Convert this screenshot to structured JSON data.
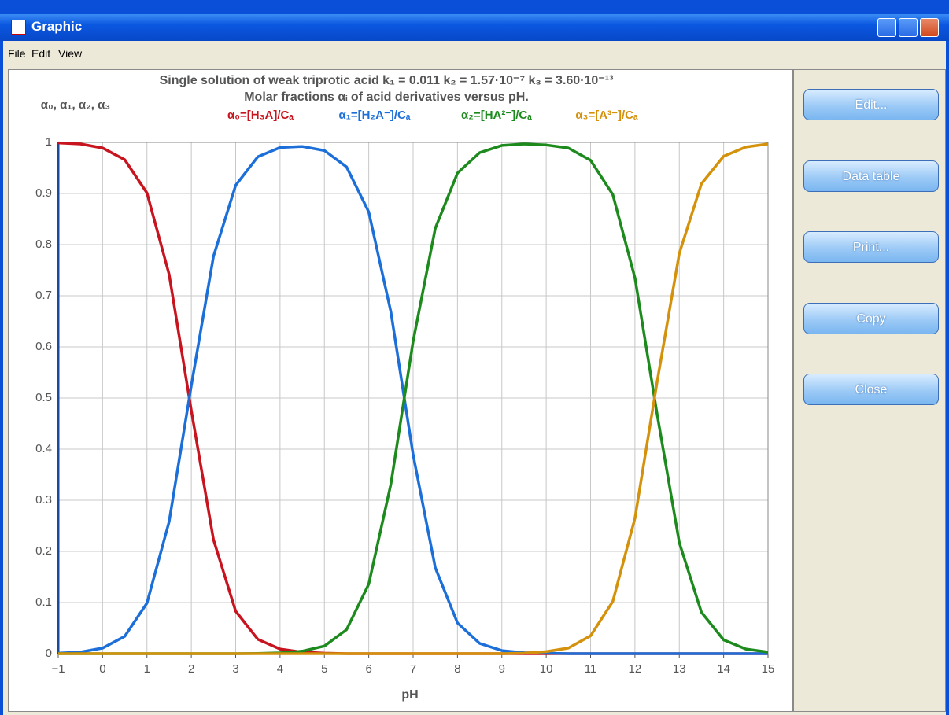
{
  "window": {
    "title": "Graphic"
  },
  "menu": [
    "File",
    "Edit",
    "View"
  ],
  "buttons": [
    "Edit...",
    "Data table",
    "Print...",
    "Copy",
    "Close"
  ],
  "chart_data": {
    "type": "line",
    "title": "Single solution of weak triprotic acid  k₁ = 0.011   k₂ = 1.57·10⁻⁷   k₃ = 3.60·10⁻¹³",
    "subtitle": "Molar fractions αᵢ of acid derivatives versus pH.",
    "y_label": "α₀, α₁, α₂, α₃",
    "x_label": "pH",
    "x": [
      -1,
      -0.5,
      0,
      0.5,
      1,
      1.5,
      2,
      2.5,
      3,
      3.5,
      4,
      4.5,
      5,
      5.5,
      6,
      6.5,
      7,
      7.5,
      8,
      8.5,
      9,
      9.5,
      10,
      10.5,
      11,
      11.5,
      12,
      12.5,
      13,
      13.5,
      14,
      14.5,
      15
    ],
    "series": [
      {
        "name": "α₀=[H₃A]/Cₐ",
        "color": "#c8141e",
        "values": [
          0.999,
          0.997,
          0.989,
          0.966,
          0.901,
          0.742,
          0.476,
          0.223,
          0.083,
          0.028,
          0.009,
          0.003,
          0.001,
          0,
          0,
          0,
          0,
          0,
          0,
          0,
          0,
          0,
          0,
          0,
          0,
          0,
          0,
          0,
          0,
          0,
          0,
          0,
          0
        ]
      },
      {
        "name": "α₁=[H₂A⁻]/Cₐ",
        "color": "#1c6fd8",
        "values": [
          0.001,
          0.003,
          0.011,
          0.034,
          0.099,
          0.258,
          0.524,
          0.777,
          0.916,
          0.972,
          0.99,
          0.992,
          0.984,
          0.952,
          0.864,
          0.668,
          0.389,
          0.168,
          0.06,
          0.02,
          0.006,
          0.002,
          0.001,
          0,
          0,
          0,
          0,
          0,
          0,
          0,
          0,
          0,
          0
        ]
      },
      {
        "name": "α₂=[HA²⁻]/Cₐ",
        "color": "#1c8a1c",
        "values": [
          0,
          0,
          0,
          0,
          0,
          0,
          0,
          0,
          0,
          0.0005,
          0.0016,
          0.005,
          0.015,
          0.047,
          0.136,
          0.332,
          0.611,
          0.832,
          0.94,
          0.98,
          0.994,
          0.997,
          0.995,
          0.989,
          0.965,
          0.898,
          0.735,
          0.468,
          0.217,
          0.081,
          0.027,
          0.009,
          0.003
        ]
      },
      {
        "name": "α₃=[A³⁻]/Cₐ",
        "color": "#d4920c",
        "values": [
          0,
          0,
          0,
          0,
          0,
          0,
          0,
          0,
          0,
          0,
          0,
          0,
          0,
          0,
          0,
          0,
          0,
          0,
          0,
          0,
          0,
          0.001,
          0.004,
          0.011,
          0.035,
          0.102,
          0.265,
          0.532,
          0.783,
          0.919,
          0.973,
          0.991,
          0.997
        ]
      }
    ],
    "xlim": [
      -1,
      15
    ],
    "xticks": [
      {
        "value": -1,
        "label": "−1"
      },
      0,
      1,
      2,
      3,
      4,
      5,
      6,
      7,
      8,
      9,
      10,
      11,
      12,
      13,
      14,
      15
    ],
    "ylim": [
      0,
      1
    ],
    "yticks": [
      0,
      0.1,
      0.2,
      0.3,
      0.4,
      0.5,
      0.6,
      0.7,
      0.8,
      0.9,
      1
    ],
    "grid": true
  }
}
